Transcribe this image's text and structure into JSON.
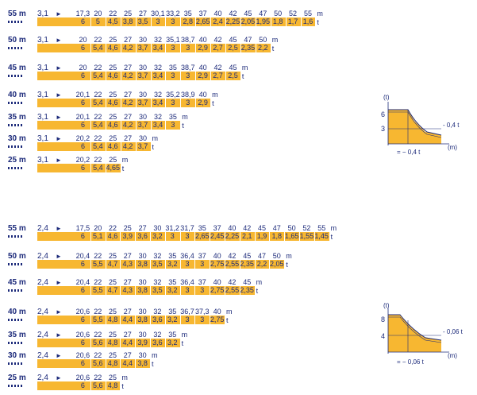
{
  "top_section": {
    "rows": [
      {
        "jib": "55 m",
        "min_radius": "3,1",
        "radii": [
          "17,3",
          "20",
          "22",
          "25",
          "27",
          "30,1",
          "33,2",
          "35",
          "37",
          "40",
          "42",
          "45",
          "47",
          "50",
          "52",
          "55"
        ],
        "radius_unit": "m",
        "loads": [
          "6",
          "5",
          "4,5",
          "3,8",
          "3,5",
          "3",
          "3",
          "2,8",
          "2,65",
          "2,4",
          "2,25",
          "2,05",
          "1,95",
          "1,8",
          "1,7",
          "1,6"
        ],
        "load_unit": "t"
      },
      {
        "jib": "50 m",
        "min_radius": "3,1",
        "radii": [
          "20",
          "22",
          "25",
          "27",
          "30",
          "32",
          "35,1",
          "38,7",
          "40",
          "42",
          "45",
          "47",
          "50"
        ],
        "radius_unit": "m",
        "loads": [
          "6",
          "5,4",
          "4,6",
          "4,2",
          "3,7",
          "3,4",
          "3",
          "3",
          "2,9",
          "2,7",
          "2,5",
          "2,35",
          "2,2"
        ],
        "load_unit": "t"
      },
      {
        "jib": "45 m",
        "min_radius": "3,1",
        "radii": [
          "20",
          "22",
          "25",
          "27",
          "30",
          "32",
          "35",
          "38,7",
          "40",
          "42",
          "45"
        ],
        "radius_unit": "m",
        "loads": [
          "6",
          "5,4",
          "4,6",
          "4,2",
          "3,7",
          "3,4",
          "3",
          "3",
          "2,9",
          "2,7",
          "2,5"
        ],
        "load_unit": "t"
      },
      {
        "jib": "40 m",
        "min_radius": "3,1",
        "radii": [
          "20,1",
          "22",
          "25",
          "27",
          "30",
          "32",
          "35,2",
          "38,9",
          "40"
        ],
        "radius_unit": "m",
        "loads": [
          "6",
          "5,4",
          "4,6",
          "4,2",
          "3,7",
          "3,4",
          "3",
          "3",
          "2,9"
        ],
        "load_unit": "t"
      },
      {
        "jib": "35 m",
        "min_radius": "3,1",
        "radii": [
          "20,1",
          "22",
          "25",
          "27",
          "30",
          "32",
          "35"
        ],
        "radius_unit": "m",
        "loads": [
          "6",
          "5,4",
          "4,6",
          "4,2",
          "3,7",
          "3,4",
          "3"
        ],
        "load_unit": "t"
      },
      {
        "jib": "30 m",
        "min_radius": "3,1",
        "radii": [
          "20,2",
          "22",
          "25",
          "27",
          "30"
        ],
        "radius_unit": "m",
        "loads": [
          "6",
          "5,4",
          "4,6",
          "4,2",
          "3,7"
        ],
        "load_unit": "t"
      },
      {
        "jib": "25 m",
        "min_radius": "3,1",
        "radii": [
          "20,2",
          "22",
          "25"
        ],
        "radius_unit": "m",
        "loads": [
          "6",
          "5,4",
          "4,65"
        ],
        "load_unit": "t"
      }
    ],
    "diagram": {
      "y_unit": "(t)",
      "y_top": "6",
      "y_mid": "3",
      "x_unit": "(m)",
      "right_label": "- 0,4 t",
      "bottom_label": "= − 0,4 t"
    }
  },
  "bottom_section": {
    "rows": [
      {
        "jib": "55 m",
        "min_radius": "2,4",
        "radii": [
          "17,5",
          "20",
          "22",
          "25",
          "27",
          "30",
          "31,2",
          "31,7",
          "35",
          "37",
          "40",
          "42",
          "45",
          "47",
          "50",
          "52",
          "55"
        ],
        "radius_unit": "m",
        "loads": [
          "6",
          "5,1",
          "4,6",
          "3,9",
          "3,6",
          "3,2",
          "3",
          "3",
          "2,65",
          "2,45",
          "2,25",
          "2,1",
          "1,9",
          "1,8",
          "1,65",
          "1,55",
          "1,45"
        ],
        "load_unit": "t"
      },
      {
        "jib": "50 m",
        "min_radius": "2,4",
        "radii": [
          "20,4",
          "22",
          "25",
          "27",
          "30",
          "32",
          "35",
          "36,4",
          "37",
          "40",
          "42",
          "45",
          "47",
          "50"
        ],
        "radius_unit": "m",
        "loads": [
          "6",
          "5,5",
          "4,7",
          "4,3",
          "3,8",
          "3,5",
          "3,2",
          "3",
          "3",
          "2,75",
          "2,55",
          "2,35",
          "2,2",
          "2,05"
        ],
        "load_unit": "t"
      },
      {
        "jib": "45 m",
        "min_radius": "2,4",
        "radii": [
          "20,4",
          "22",
          "25",
          "27",
          "30",
          "32",
          "35",
          "36,4",
          "37",
          "40",
          "42",
          "45"
        ],
        "radius_unit": "m",
        "loads": [
          "6",
          "5,5",
          "4,7",
          "4,3",
          "3,8",
          "3,5",
          "3,2",
          "3",
          "3",
          "2,75",
          "2,55",
          "2,35"
        ],
        "load_unit": "t"
      },
      {
        "jib": "40 m",
        "min_radius": "2,4",
        "radii": [
          "20,6",
          "22",
          "25",
          "27",
          "30",
          "32",
          "35",
          "36,7",
          "37,3",
          "40"
        ],
        "radius_unit": "m",
        "loads": [
          "6",
          "5,5",
          "4,8",
          "4,4",
          "3,8",
          "3,6",
          "3,2",
          "3",
          "3",
          "2,75"
        ],
        "load_unit": "t"
      },
      {
        "jib": "35 m",
        "min_radius": "2,4",
        "radii": [
          "20,6",
          "22",
          "25",
          "27",
          "30",
          "32",
          "35"
        ],
        "radius_unit": "m",
        "loads": [
          "6",
          "5,6",
          "4,8",
          "4,4",
          "3,9",
          "3,6",
          "3,2"
        ],
        "load_unit": "t"
      },
      {
        "jib": "30 m",
        "min_radius": "2,4",
        "radii": [
          "20,6",
          "22",
          "25",
          "27",
          "30"
        ],
        "radius_unit": "m",
        "loads": [
          "6",
          "5,6",
          "4,8",
          "4,4",
          "3,8"
        ],
        "load_unit": "t"
      },
      {
        "jib": "25 m",
        "min_radius": "2,4",
        "radii": [
          "20,6",
          "22",
          "25"
        ],
        "radius_unit": "m",
        "loads": [
          "6",
          "5,6",
          "4,8"
        ],
        "load_unit": "t"
      }
    ],
    "diagram": {
      "y_unit": "(t)",
      "y_top": "8",
      "y_mid": "4",
      "x_unit": "(m)",
      "right_label": "- 0,06 t",
      "bottom_label": "= − 0,06 t"
    }
  },
  "colors": {
    "bar": "#f7b731",
    "text": "#1c2a7a"
  }
}
